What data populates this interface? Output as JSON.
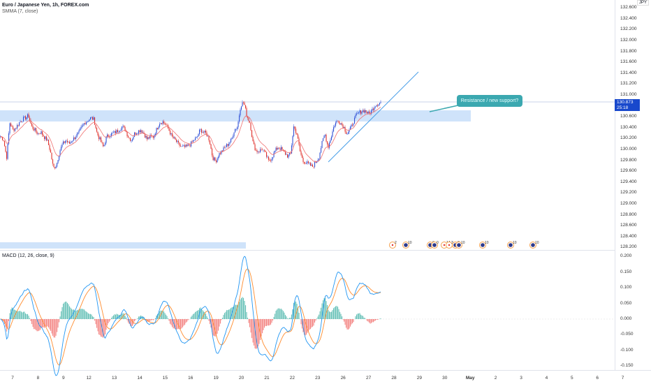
{
  "header": {
    "symbol_title": "Euro / Japanese Yen, 1h, FOREX.com",
    "indicator": "SMMA (7, close)"
  },
  "macd_legend": "MACD (12, 26, close, 9)",
  "currency": "JPY",
  "price_tag": {
    "price": "130.873",
    "countdown": "25:18"
  },
  "callout": "Resistance / new support?",
  "colors": {
    "up": "#2f4fd6",
    "down": "#e0302b",
    "smma": "#f07070",
    "zone": "#cfe3fa",
    "macd": "#2196f3",
    "signal": "#ff8c2e",
    "hist_up": "#26a69a",
    "hist_down": "#ef5350",
    "trend": "#4a9fe8",
    "tag": "#1848cc",
    "callout": "#3ba8b0"
  },
  "price_axis": [
    "132.600",
    "132.400",
    "132.200",
    "132.000",
    "131.800",
    "131.600",
    "131.400",
    "131.200",
    "131.000",
    "130.600",
    "130.400",
    "130.200",
    "130.000",
    "129.800",
    "129.600",
    "129.400",
    "129.200",
    "129.000",
    "128.800",
    "128.600",
    "128.400",
    "128.200"
  ],
  "macd_axis": [
    "0.200",
    "0.150",
    "0.100",
    "0.050",
    "0.000",
    "-0.050",
    "-0.100",
    "-0.150"
  ],
  "dates": [
    "7",
    "8",
    "9",
    "12",
    "13",
    "14",
    "15",
    "16",
    "19",
    "20",
    "21",
    "22",
    "23",
    "26",
    "27",
    "28",
    "29",
    "30",
    "May",
    "2",
    "3",
    "4",
    "5",
    "6",
    "7"
  ],
  "events": [
    {
      "count": "2",
      "type": "red"
    },
    {
      "count": "10",
      "type": "blue"
    },
    {
      "count": "6",
      "type": "blue"
    },
    {
      "count": "0",
      "type": "blue"
    },
    {
      "count": "14",
      "type": "red"
    },
    {
      "count": "3",
      "type": "red"
    },
    {
      "count": "8",
      "type": "blue"
    },
    {
      "count": "10",
      "type": "blue"
    },
    {
      "count": "10",
      "type": "blue"
    },
    {
      "count": "10",
      "type": "blue"
    },
    {
      "count": "10",
      "type": "blue"
    }
  ],
  "chart_data": {
    "type": "candlestick",
    "title": "Euro / Japanese Yen, 1h, FOREX.com",
    "ylim": [
      128.2,
      132.6
    ],
    "resistance_zone": [
      130.6,
      130.8
    ],
    "last_price": 130.873,
    "x_days": [
      "Apr 7",
      "Apr 27"
    ],
    "close_samples": [
      130.24,
      130.18,
      129.85,
      130.49,
      130.36,
      130.4,
      130.49,
      130.55,
      130.58,
      130.62,
      130.42,
      130.36,
      130.29,
      130.32,
      130.23,
      130.17,
      129.97,
      129.65,
      129.72,
      129.97,
      130.1,
      130.17,
      130.1,
      130.17,
      130.23,
      130.29,
      130.4,
      130.49,
      130.53,
      130.58,
      130.55,
      130.29,
      130.17,
      130.04,
      130.23,
      130.27,
      130.29,
      130.32,
      130.36,
      130.42,
      130.36,
      130.23,
      130.17,
      130.29,
      130.33,
      130.36,
      130.29,
      130.19,
      130.23,
      130.23,
      130.36,
      130.49,
      130.51,
      130.45,
      130.36,
      130.23,
      130.17,
      130.1,
      130.04,
      130.04,
      130.06,
      130.1,
      130.17,
      130.22,
      130.36,
      130.32,
      130.29,
      130.17,
      129.85,
      129.78,
      129.91,
      129.97,
      130.04,
      130.1,
      130.17,
      130.36,
      130.42,
      130.81,
      130.87,
      130.62,
      130.49,
      130.1,
      129.97,
      129.97,
      130.01,
      129.91,
      129.78,
      129.85,
      129.97,
      130.04,
      130.01,
      129.94,
      129.88,
      129.91,
      130.42,
      130.29,
      129.97,
      129.78,
      129.76,
      129.72,
      129.68,
      129.76,
      129.85,
      130.1,
      130.29,
      130.04,
      130.23,
      130.45,
      130.53,
      130.49,
      130.42,
      130.29,
      130.36,
      130.49,
      130.62,
      130.68,
      130.71,
      130.71,
      130.65,
      130.71,
      130.81,
      130.84,
      130.87
    ],
    "indicators": {
      "smma": {
        "length": 7,
        "source": "close"
      },
      "macd": {
        "fast": 12,
        "slow": 26,
        "source": "close",
        "signal": 9
      },
      "macd_ylim": [
        -0.17,
        0.2
      ]
    }
  }
}
